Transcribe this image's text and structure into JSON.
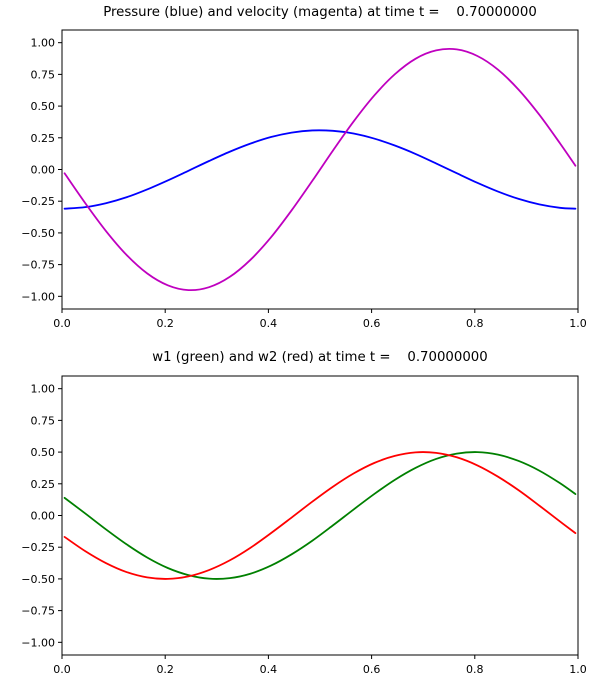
{
  "figure": {
    "background": "#ffffff",
    "top_title": "Pressure (blue) and velocity (magenta) at time t =    0.70000000",
    "bottom_title": "w1 (green) and w2 (red) at time t =    0.70000000"
  },
  "chart_data": [
    {
      "type": "line",
      "title": "Pressure (blue) and velocity (magenta) at time t =    0.70000000",
      "xlabel": "",
      "ylabel": "",
      "xlim": [
        0.0,
        1.0
      ],
      "ylim": [
        -1.1,
        1.1
      ],
      "grid": false,
      "legend_position": "none",
      "xticks": {
        "values": [
          0.0,
          0.2,
          0.4,
          0.6,
          0.8,
          1.0
        ],
        "labels": [
          "0.0",
          "0.2",
          "0.4",
          "0.6",
          "0.8",
          "1.0"
        ]
      },
      "yticks": {
        "values": [
          1.0,
          0.75,
          0.5,
          0.25,
          0.0,
          -0.25,
          -0.5,
          -0.75,
          -1.0
        ],
        "labels": [
          "1.00",
          "0.75",
          "0.50",
          "0.25",
          "0.00",
          "−0.25",
          "−0.50",
          "−0.75",
          "−1.00"
        ]
      },
      "x": [
        0.005,
        0.045,
        0.085,
        0.125,
        0.165,
        0.205,
        0.245,
        0.285,
        0.325,
        0.365,
        0.405,
        0.445,
        0.485,
        0.525,
        0.565,
        0.605,
        0.645,
        0.685,
        0.725,
        0.765,
        0.805,
        0.845,
        0.885,
        0.925,
        0.965,
        0.995
      ],
      "series": [
        {
          "name": "pressure",
          "color": "#0000ff",
          "values": [
            -0.309,
            -0.297,
            -0.266,
            -0.219,
            -0.157,
            -0.086,
            -0.01,
            0.067,
            0.14,
            0.204,
            0.256,
            0.291,
            0.308,
            0.305,
            0.284,
            0.244,
            0.189,
            0.123,
            0.048,
            -0.029,
            -0.105,
            -0.174,
            -0.232,
            -0.275,
            -0.302,
            -0.309
          ]
        },
        {
          "name": "velocity",
          "color": "#bf00bf",
          "values": [
            -0.03,
            -0.265,
            -0.484,
            -0.673,
            -0.819,
            -0.913,
            -0.951,
            -0.928,
            -0.847,
            -0.713,
            -0.535,
            -0.322,
            -0.09,
            0.149,
            0.378,
            0.583,
            0.751,
            0.873,
            0.939,
            0.947,
            0.895,
            0.787,
            0.629,
            0.432,
            0.207,
            0.03
          ]
        }
      ]
    },
    {
      "type": "line",
      "title": "w1 (green) and w2 (red) at time t =    0.70000000",
      "xlabel": "",
      "ylabel": "",
      "xlim": [
        0.0,
        1.0
      ],
      "ylim": [
        -1.1,
        1.1
      ],
      "grid": false,
      "legend_position": "none",
      "xticks": {
        "values": [
          0.0,
          0.2,
          0.4,
          0.6,
          0.8,
          1.0
        ],
        "labels": [
          "0.0",
          "0.2",
          "0.4",
          "0.6",
          "0.8",
          "1.0"
        ]
      },
      "yticks": {
        "values": [
          1.0,
          0.75,
          0.5,
          0.25,
          0.0,
          -0.25,
          -0.5,
          -0.75,
          -1.0
        ],
        "labels": [
          "1.00",
          "0.75",
          "0.50",
          "0.25",
          "0.00",
          "−0.25",
          "−0.50",
          "−0.75",
          "−1.00"
        ]
      },
      "x": [
        0.005,
        0.045,
        0.085,
        0.125,
        0.165,
        0.205,
        0.245,
        0.285,
        0.325,
        0.365,
        0.405,
        0.445,
        0.485,
        0.525,
        0.565,
        0.605,
        0.645,
        0.685,
        0.725,
        0.765,
        0.805,
        0.845,
        0.885,
        0.925,
        0.965,
        0.995
      ],
      "series": [
        {
          "name": "w1",
          "color": "#008000",
          "values": [
            0.139,
            0.016,
            -0.109,
            -0.227,
            -0.331,
            -0.414,
            -0.47,
            -0.498,
            -0.494,
            -0.459,
            -0.395,
            -0.306,
            -0.199,
            -0.078,
            0.047,
            0.169,
            0.281,
            0.375,
            0.446,
            0.488,
            0.5,
            0.48,
            0.43,
            0.354,
            0.255,
            0.169
          ]
        },
        {
          "name": "w2",
          "color": "#ff0000",
          "values": [
            -0.169,
            -0.281,
            -0.375,
            -0.446,
            -0.488,
            -0.5,
            -0.48,
            -0.43,
            -0.354,
            -0.255,
            -0.139,
            -0.016,
            0.109,
            0.227,
            0.331,
            0.414,
            0.47,
            0.498,
            0.494,
            0.459,
            0.395,
            0.306,
            0.199,
            0.078,
            -0.047,
            -0.139
          ]
        }
      ]
    }
  ]
}
